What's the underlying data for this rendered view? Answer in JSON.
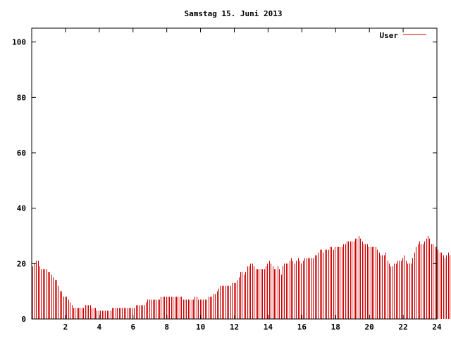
{
  "chart_data": {
    "type": "bar",
    "title": "Samstag 15. Juni 2013",
    "xlabel": "",
    "ylabel": "",
    "xlim": [
      0,
      24
    ],
    "ylim": [
      0,
      105
    ],
    "xticks": [
      2,
      4,
      6,
      8,
      10,
      12,
      14,
      16,
      18,
      20,
      22,
      24
    ],
    "yticks": [
      0,
      20,
      40,
      60,
      80,
      100
    ],
    "grid": false,
    "legend_position": "top-right",
    "series": [
      {
        "name": "User",
        "color": "#cc0000",
        "x_step_hours": 0.1,
        "values": [
          19,
          20,
          21,
          21,
          19,
          18,
          18,
          18,
          18,
          17,
          17,
          16,
          15,
          14,
          14,
          12,
          10,
          10,
          8,
          8,
          8,
          7,
          6,
          5,
          4,
          4,
          4,
          4,
          4,
          4,
          4,
          5,
          5,
          5,
          5,
          4,
          4,
          4,
          3,
          3,
          3,
          3,
          3,
          3,
          3,
          3,
          3,
          4,
          4,
          4,
          4,
          4,
          4,
          4,
          4,
          4,
          4,
          4,
          4,
          4,
          4,
          5,
          5,
          5,
          5,
          5,
          5,
          6,
          7,
          7,
          7,
          7,
          7,
          7,
          7,
          7,
          8,
          8,
          8,
          8,
          8,
          8,
          8,
          8,
          8,
          8,
          8,
          8,
          8,
          7,
          7,
          7,
          7,
          7,
          7,
          7,
          8,
          8,
          7,
          7,
          7,
          7,
          7,
          7,
          8,
          8,
          8,
          9,
          9,
          10,
          11,
          12,
          12,
          12,
          12,
          12,
          12,
          12,
          13,
          13,
          13,
          14,
          15,
          17,
          17,
          16,
          17,
          19,
          19,
          20,
          20,
          19,
          18,
          18,
          18,
          18,
          18,
          18,
          19,
          20,
          21,
          20,
          19,
          18,
          18,
          19,
          18,
          16,
          19,
          20,
          20,
          20,
          21,
          22,
          21,
          20,
          21,
          22,
          21,
          20,
          21,
          22,
          22,
          22,
          22,
          22,
          22,
          23,
          23,
          24,
          25,
          25,
          24,
          25,
          25,
          25,
          26,
          26,
          25,
          26,
          26,
          26,
          26,
          26,
          27,
          27,
          28,
          28,
          28,
          28,
          28,
          29,
          29,
          30,
          29,
          28,
          27,
          27,
          27,
          26,
          26,
          26,
          26,
          26,
          25,
          24,
          23,
          23,
          23,
          24,
          21,
          20,
          19,
          19,
          20,
          20,
          21,
          21,
          21,
          22,
          23,
          21,
          20,
          20,
          20,
          22,
          24,
          26,
          27,
          28,
          27,
          27,
          28,
          29,
          30,
          29,
          27,
          27,
          26,
          26,
          25,
          24,
          24,
          23,
          22,
          23,
          24,
          23,
          22,
          22,
          21,
          22,
          20,
          20,
          21
        ]
      }
    ]
  }
}
